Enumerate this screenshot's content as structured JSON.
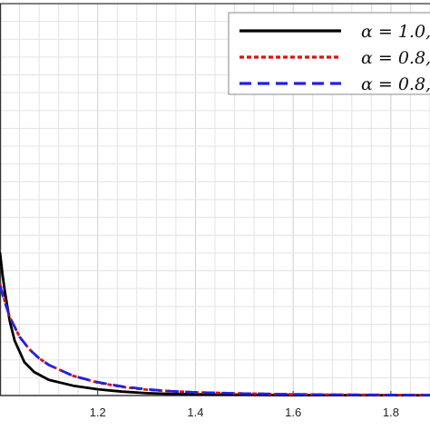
{
  "chart_data": {
    "type": "line",
    "title": "",
    "xlabel": "",
    "ylabel": "",
    "xlim": [
      1.0,
      1.88
    ],
    "ylim": [
      0,
      1
    ],
    "grid": true,
    "legend_position": "top-right",
    "x_ticks": [
      {
        "value": 1.2,
        "label": "1.2"
      },
      {
        "value": 1.4,
        "label": "1.4"
      },
      {
        "value": 1.6,
        "label": "1.6"
      },
      {
        "value": 1.8,
        "label": "1.8"
      }
    ],
    "series": [
      {
        "name": "α = 1.0,",
        "color": "#000000",
        "dash": "solid",
        "x": [
          1.0,
          1.005,
          1.01,
          1.02,
          1.03,
          1.05,
          1.07,
          1.1,
          1.15,
          1.2,
          1.25,
          1.3,
          1.35,
          1.4,
          1.5,
          1.6,
          1.7,
          1.88
        ],
        "y": [
          0.365,
          0.31,
          0.265,
          0.19,
          0.14,
          0.085,
          0.06,
          0.04,
          0.025,
          0.016,
          0.01,
          0.006,
          0.004,
          0.003,
          0.002,
          0.001,
          0.0008,
          0.0005
        ]
      },
      {
        "name": "α = 0.8,",
        "color": "#dd1111",
        "dash": "short-dash",
        "x": [
          1.0,
          1.01,
          1.02,
          1.04,
          1.06,
          1.08,
          1.1,
          1.15,
          1.2,
          1.25,
          1.3,
          1.35,
          1.4,
          1.5,
          1.6,
          1.7,
          1.88
        ],
        "y": [
          0.285,
          0.24,
          0.2,
          0.15,
          0.118,
          0.095,
          0.078,
          0.05,
          0.033,
          0.022,
          0.015,
          0.011,
          0.008,
          0.005,
          0.003,
          0.002,
          0.001
        ]
      },
      {
        "name": "α = 0.8,",
        "color": "#2222dd",
        "dash": "long-dash",
        "x": [
          1.0,
          1.01,
          1.02,
          1.04,
          1.06,
          1.08,
          1.1,
          1.15,
          1.2,
          1.25,
          1.3,
          1.35,
          1.4,
          1.5,
          1.6,
          1.7,
          1.88
        ],
        "y": [
          0.28,
          0.238,
          0.2,
          0.15,
          0.118,
          0.095,
          0.078,
          0.05,
          0.034,
          0.023,
          0.016,
          0.011,
          0.008,
          0.005,
          0.003,
          0.002,
          0.001
        ]
      }
    ]
  }
}
